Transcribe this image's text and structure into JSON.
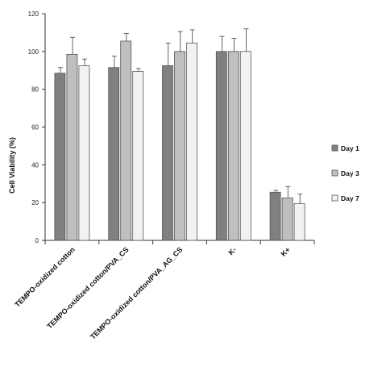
{
  "chart_data": {
    "type": "bar",
    "categories": [
      "TEMPO-oxidized cotton",
      "TEMPO-oxidized cotton/PVA_CS",
      "TEMPO-oxidized cotton/PVA_AG_CS",
      "K-",
      "K+"
    ],
    "series": [
      {
        "name": "Day 1",
        "color": "#808080",
        "values": [
          88.5,
          91.5,
          92.5,
          100,
          25.5
        ],
        "errors": [
          3,
          6,
          12,
          8,
          1
        ]
      },
      {
        "name": "Day 3",
        "color": "#bfbfbf",
        "values": [
          98.5,
          105.5,
          100,
          100,
          22.5
        ],
        "errors": [
          9,
          4,
          10.5,
          7,
          6
        ]
      },
      {
        "name": "Day 7",
        "color": "#f2f2f2",
        "values": [
          92.5,
          89.5,
          104.5,
          100,
          19.5
        ],
        "errors": [
          3.5,
          1.5,
          7,
          12,
          5
        ]
      }
    ],
    "xlabel": "",
    "ylabel": "Cell Viability (%)",
    "ylim": [
      0,
      120
    ],
    "yticks": [
      0,
      20,
      40,
      60,
      80,
      100,
      120
    ],
    "grid": false,
    "error_bars": true,
    "legend_position": "right"
  }
}
